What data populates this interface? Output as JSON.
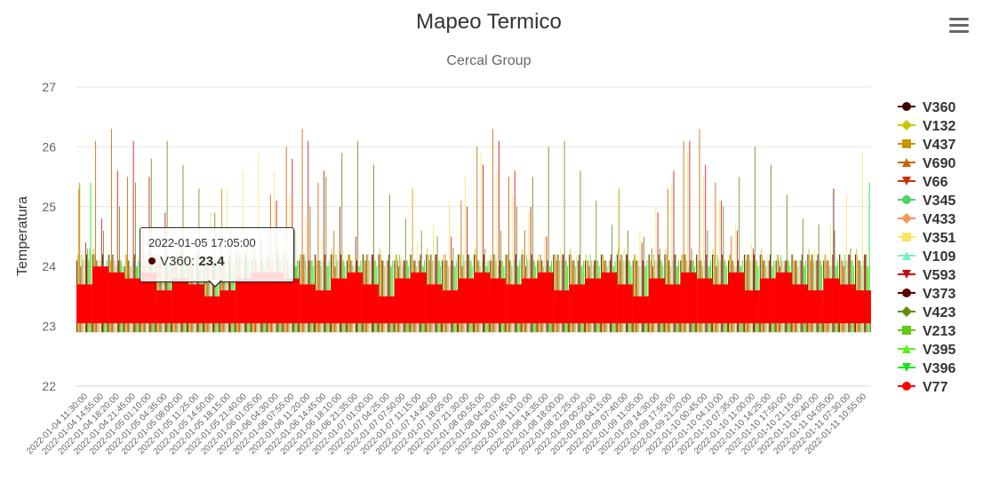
{
  "chart_data": {
    "type": "bar",
    "title": "Mapeo Termico",
    "subtitle": "Cercal Group",
    "ylabel": "Temperatura",
    "xlabel": "",
    "ylim": [
      22,
      27
    ],
    "yticks": [
      22,
      23,
      24,
      25,
      26,
      27
    ],
    "grid": true,
    "legend_position": "right",
    "categories": [
      "2022-01-04 11:30:00",
      "2022-01-04 14:55:00",
      "2022-01-04 18:20:00",
      "2022-01-04 21:45:00",
      "2022-01-05 01:10:00",
      "2022-01-05 04:35:00",
      "2022-01-05 08:00:00",
      "2022-01-05 11:25:00",
      "2022-01-05 14:50:00",
      "2022-01-05 18:15:00",
      "2022-01-05 21:40:00",
      "2022-01-06 01:05:00",
      "2022-01-06 04:30:00",
      "2022-01-06 07:55:00",
      "2022-01-06 11:20:00",
      "2022-01-06 14:45:00",
      "2022-01-06 18:10:00",
      "2022-01-06 21:35:00",
      "2022-01-07 01:00:00",
      "2022-01-07 04:25:00",
      "2022-01-07 07:50:00",
      "2022-01-07 11:15:00",
      "2022-01-07 14:40:00",
      "2022-01-07 18:05:00",
      "2022-01-07 21:30:00",
      "2022-01-08 00:55:00",
      "2022-01-08 04:20:00",
      "2022-01-08 07:45:00",
      "2022-01-08 11:10:00",
      "2022-01-08 14:35:00",
      "2022-01-08 18:00:00",
      "2022-01-08 21:25:00",
      "2022-01-09 00:50:00",
      "2022-01-09 04:15:00",
      "2022-01-09 07:40:00",
      "2022-01-09 11:05:00",
      "2022-01-09 14:30:00",
      "2022-01-09 17:55:00",
      "2022-01-09 21:20:00",
      "2022-01-10 00:45:00",
      "2022-01-10 04:10:00",
      "2022-01-10 07:35:00",
      "2022-01-10 11:00:00",
      "2022-01-10 14:25:00",
      "2022-01-10 17:50:00",
      "2022-01-10 21:15:00",
      "2022-01-11 00:40:00",
      "2022-01-11 04:05:00",
      "2022-01-11 07:30:00",
      "2022-01-11 10:55:00"
    ],
    "series": [
      {
        "name": "V360",
        "color": "#3d0000",
        "marker": "circle",
        "values": [
          24.1,
          24.2,
          24.2,
          24.0,
          24.1,
          24.2,
          24.2,
          24.1,
          24.1,
          24.2,
          24.2,
          24.1,
          24.2,
          24.2,
          24.1,
          24.2,
          24.2,
          24.1,
          24.2,
          24.2,
          24.1,
          24.2,
          24.2,
          24.1,
          24.2,
          24.2,
          24.1,
          24.2,
          24.2,
          24.1,
          24.2,
          24.2,
          24.1,
          24.2,
          24.2,
          24.1,
          24.2,
          24.2,
          24.1,
          24.2,
          24.2,
          24.1,
          24.2,
          24.2,
          24.1,
          24.2,
          24.2,
          24.1,
          24.2,
          24.2
        ]
      },
      {
        "name": "V132",
        "color": "#c8c800",
        "marker": "diamond",
        "values": [
          24.2,
          24.3,
          24.2,
          24.2,
          24.3,
          24.2,
          24.2,
          24.3,
          24.2,
          24.2,
          24.3,
          24.2,
          24.2,
          24.3,
          24.2,
          24.2,
          24.3,
          24.2,
          24.2,
          24.3,
          24.2,
          24.2,
          24.3,
          24.2,
          24.2,
          24.3,
          24.2,
          24.2,
          24.3,
          24.2,
          24.2,
          24.3,
          24.2,
          24.2,
          24.3,
          24.2,
          24.2,
          24.3,
          24.2,
          24.2,
          24.3,
          24.2,
          24.2,
          24.3,
          24.2,
          24.2,
          24.3,
          24.2,
          24.2,
          24.3
        ]
      },
      {
        "name": "V437",
        "color": "#c89600",
        "marker": "square",
        "values": [
          25.3,
          24.2,
          24.1,
          24.2,
          24.3,
          24.1,
          24.2,
          24.2,
          24.1,
          25.3,
          24.2,
          24.2,
          24.1,
          24.2,
          24.2,
          24.1,
          24.2,
          24.2,
          24.1,
          24.2,
          24.2,
          25.3,
          24.2,
          24.1,
          24.2,
          24.2,
          24.1,
          24.2,
          24.2,
          24.1,
          24.2,
          24.2,
          24.1,
          24.2,
          25.3,
          24.2,
          24.1,
          24.2,
          24.2,
          24.1,
          24.2,
          24.2,
          24.1,
          24.2,
          24.2,
          24.1,
          24.2,
          24.2,
          24.1,
          24.2
        ]
      },
      {
        "name": "V690",
        "color": "#c86400",
        "marker": "triangle",
        "values": [
          25.4,
          26.1,
          26.3,
          25.5,
          24.6,
          24.2,
          24.1,
          24.1,
          24.1,
          24.1,
          24.1,
          24.3,
          25.2,
          26.0,
          26.3,
          25.4,
          24.6,
          24.2,
          24.1,
          24.1,
          24.1,
          24.1,
          24.1,
          24.2,
          25.1,
          26.0,
          26.3,
          25.5,
          24.6,
          24.2,
          24.1,
          24.1,
          24.1,
          24.1,
          24.1,
          24.1,
          24.3,
          25.3,
          26.1,
          26.3,
          25.4,
          24.5,
          24.2,
          24.1,
          24.1,
          24.1,
          24.1,
          24.1,
          24.1,
          24.1
        ]
      },
      {
        "name": "V66",
        "color": "#c83200",
        "marker": "triangle-down",
        "values": [
          24.0,
          24.1,
          24.2,
          24.1,
          24.0,
          24.1,
          24.2,
          24.1,
          24.0,
          24.1,
          24.2,
          24.1,
          24.0,
          24.1,
          24.2,
          24.1,
          24.0,
          24.1,
          24.2,
          24.1,
          24.0,
          24.1,
          24.2,
          24.1,
          24.0,
          24.1,
          24.2,
          24.1,
          24.0,
          24.1,
          24.2,
          24.1,
          24.0,
          24.1,
          24.2,
          24.1,
          24.0,
          24.1,
          24.2,
          24.1,
          24.0,
          24.1,
          24.2,
          24.1,
          24.0,
          24.1,
          24.2,
          24.1,
          24.0,
          24.1
        ]
      },
      {
        "name": "V345",
        "color": "#50d264",
        "marker": "circle",
        "values": [
          24.2,
          24.1,
          24.2,
          24.1,
          24.2,
          24.1,
          24.2,
          24.1,
          24.2,
          24.1,
          24.2,
          24.1,
          24.2,
          24.1,
          24.2,
          24.1,
          24.2,
          24.1,
          24.2,
          24.1,
          24.2,
          24.1,
          24.2,
          24.1,
          24.2,
          24.1,
          24.2,
          24.1,
          24.2,
          24.1,
          24.2,
          24.1,
          24.2,
          24.1,
          24.2,
          24.1,
          24.2,
          24.1,
          24.2,
          24.1,
          24.2,
          24.1,
          24.2,
          24.1,
          24.2,
          24.1,
          24.2,
          24.1,
          24.2,
          24.1
        ]
      },
      {
        "name": "V433",
        "color": "#f0965a",
        "marker": "diamond",
        "values": [
          24.1,
          24.0,
          24.1,
          24.0,
          24.1,
          24.0,
          24.1,
          24.0,
          24.1,
          24.0,
          24.1,
          24.0,
          24.1,
          24.0,
          24.1,
          24.0,
          24.1,
          24.0,
          24.1,
          24.0,
          24.1,
          24.0,
          24.1,
          24.0,
          24.1,
          24.0,
          24.1,
          24.0,
          24.1,
          24.0,
          24.1,
          24.0,
          24.1,
          24.0,
          24.1,
          24.0,
          24.1,
          24.0,
          24.1,
          24.0,
          24.1,
          24.0,
          24.1,
          24.0,
          24.1,
          24.0,
          24.1,
          24.0,
          24.1,
          24.0
        ]
      },
      {
        "name": "V351",
        "color": "#f5e664",
        "marker": "square",
        "values": [
          24.2,
          24.1,
          24.0,
          24.0,
          24.1,
          24.2,
          24.4,
          24.6,
          24.9,
          25.3,
          25.6,
          25.9,
          25.6,
          25.2,
          24.8,
          24.5,
          24.3,
          24.2,
          24.1,
          24.1,
          24.2,
          24.4,
          24.7,
          25.1,
          25.5,
          25.9,
          25.6,
          25.2,
          24.9,
          24.5,
          24.3,
          24.2,
          24.1,
          24.1,
          24.3,
          24.6,
          25.0,
          25.4,
          25.9,
          25.5,
          25.1,
          24.7,
          24.4,
          24.2,
          24.1,
          24.1,
          24.3,
          24.7,
          25.2,
          25.9
        ]
      },
      {
        "name": "V109",
        "color": "#78f0c8",
        "marker": "triangle",
        "values": [
          24.1,
          24.1,
          24.0,
          24.1,
          24.1,
          24.0,
          24.1,
          24.1,
          24.0,
          24.1,
          24.1,
          24.0,
          24.1,
          24.1,
          24.0,
          24.1,
          24.1,
          24.0,
          24.1,
          24.1,
          24.0,
          24.1,
          24.1,
          24.0,
          24.1,
          24.1,
          24.0,
          24.1,
          24.1,
          24.0,
          24.1,
          24.1,
          24.0,
          24.1,
          24.1,
          24.0,
          24.1,
          24.1,
          24.0,
          24.1,
          24.1,
          24.0,
          24.1,
          24.1,
          24.0,
          24.1,
          24.1,
          24.0,
          24.1,
          24.1
        ]
      },
      {
        "name": "V593",
        "color": "#c80a0a",
        "marker": "triangle-down",
        "values": [
          24.4,
          24.8,
          25.6,
          26.1,
          25.5,
          24.9,
          24.4,
          24.2,
          24.1,
          24.1,
          24.2,
          24.5,
          25.1,
          25.8,
          26.1,
          25.6,
          25.0,
          24.5,
          24.2,
          24.1,
          24.1,
          24.1,
          24.2,
          24.5,
          25.0,
          25.7,
          26.1,
          25.6,
          25.0,
          24.5,
          24.2,
          24.1,
          24.1,
          24.1,
          24.2,
          24.4,
          24.9,
          25.6,
          26.1,
          25.7,
          25.1,
          24.6,
          24.3,
          24.1,
          24.1,
          24.1,
          24.1,
          24.2,
          24.2,
          24.2
        ]
      },
      {
        "name": "V373",
        "color": "#5a0000",
        "marker": "circle",
        "values": [
          24.2,
          24.2,
          24.1,
          24.2,
          24.2,
          24.1,
          24.2,
          24.2,
          24.1,
          24.2,
          24.2,
          24.1,
          24.2,
          24.2,
          24.1,
          24.2,
          24.2,
          24.1,
          24.2,
          24.2,
          24.1,
          24.2,
          24.2,
          24.1,
          24.2,
          24.2,
          24.1,
          24.2,
          24.2,
          24.1,
          24.2,
          24.2,
          24.1,
          24.2,
          24.2,
          24.1,
          24.2,
          24.2,
          24.1,
          24.2,
          24.2,
          24.1,
          24.2,
          24.2,
          24.1,
          24.2,
          24.2,
          25.3,
          24.2,
          24.2
        ]
      },
      {
        "name": "V423",
        "color": "#648c0a",
        "marker": "diamond",
        "values": [
          24.3,
          24.6,
          25.0,
          25.4,
          25.8,
          26.1,
          25.7,
          25.3,
          24.9,
          24.6,
          24.3,
          24.2,
          24.3,
          24.6,
          25.0,
          25.5,
          25.9,
          26.1,
          25.7,
          25.2,
          24.8,
          24.6,
          24.5,
          24.3,
          24.2,
          24.3,
          24.6,
          25.0,
          25.5,
          26.0,
          26.1,
          25.6,
          25.1,
          24.7,
          24.6,
          24.5,
          24.3,
          24.2,
          24.3,
          24.6,
          25.0,
          25.5,
          26.0,
          25.7,
          25.2,
          24.8,
          24.7,
          24.6,
          24.3,
          24.2
        ]
      },
      {
        "name": "V213",
        "color": "#64c814",
        "marker": "square",
        "values": [
          24.1,
          24.0,
          24.1,
          24.0,
          24.1,
          24.0,
          24.1,
          24.0,
          24.1,
          24.0,
          24.1,
          24.0,
          24.1,
          24.0,
          24.1,
          24.0,
          24.1,
          24.0,
          24.1,
          24.0,
          24.1,
          24.0,
          24.1,
          24.0,
          24.1,
          24.0,
          24.1,
          24.0,
          24.1,
          24.0,
          24.1,
          24.0,
          24.1,
          24.0,
          24.1,
          24.0,
          24.1,
          24.0,
          24.1,
          24.0,
          24.1,
          24.0,
          24.1,
          24.0,
          24.1,
          24.0,
          24.1,
          24.0,
          24.1,
          24.0
        ]
      },
      {
        "name": "V395",
        "color": "#5af01e",
        "marker": "triangle",
        "values": [
          24.3,
          24.0,
          24.1,
          24.0,
          24.1,
          24.0,
          24.1,
          24.0,
          24.1,
          24.0,
          24.1,
          24.0,
          24.1,
          24.0,
          24.1,
          24.0,
          24.1,
          24.0,
          24.1,
          24.0,
          24.1,
          24.0,
          24.1,
          24.0,
          24.1,
          24.0,
          24.1,
          24.0,
          24.1,
          24.0,
          24.1,
          24.0,
          24.1,
          24.0,
          24.1,
          24.0,
          24.1,
          24.0,
          24.1,
          24.0,
          24.1,
          24.0,
          24.1,
          24.0,
          24.1,
          24.0,
          24.1,
          24.0,
          24.1,
          24.0
        ]
      },
      {
        "name": "V396",
        "color": "#14e614",
        "marker": "triangle-down",
        "values": [
          25.4,
          24.1,
          24.0,
          24.1,
          24.0,
          24.1,
          24.0,
          24.1,
          24.0,
          24.1,
          24.0,
          24.1,
          24.0,
          24.1,
          24.0,
          24.1,
          24.0,
          24.1,
          24.0,
          24.1,
          24.0,
          24.1,
          24.0,
          24.1,
          24.0,
          24.1,
          24.0,
          24.1,
          24.0,
          24.1,
          24.0,
          24.1,
          24.0,
          24.1,
          24.0,
          24.1,
          24.0,
          24.1,
          24.0,
          24.1,
          24.0,
          24.1,
          24.0,
          24.1,
          24.0,
          24.1,
          24.0,
          24.1,
          24.0,
          25.4
        ]
      },
      {
        "name": "V77",
        "color": "#ff0000",
        "marker": "circle",
        "values": [
          23.7,
          24.0,
          23.9,
          23.8,
          23.9,
          23.6,
          23.8,
          23.7,
          23.5,
          23.6,
          23.8,
          23.9,
          23.9,
          23.8,
          23.7,
          23.6,
          23.8,
          23.9,
          23.7,
          23.5,
          23.8,
          23.9,
          23.7,
          23.6,
          23.8,
          23.9,
          23.8,
          23.7,
          23.8,
          23.9,
          23.6,
          23.7,
          23.8,
          23.9,
          23.7,
          23.5,
          23.8,
          23.7,
          23.9,
          23.8,
          23.7,
          23.9,
          23.6,
          23.8,
          23.9,
          23.7,
          23.6,
          23.8,
          23.7,
          23.6
        ]
      }
    ],
    "tooltip": {
      "header": "2022-01-05 17:05:00",
      "series": "V360",
      "value": "23.4"
    }
  },
  "menu_icon": "hamburger-menu-icon"
}
